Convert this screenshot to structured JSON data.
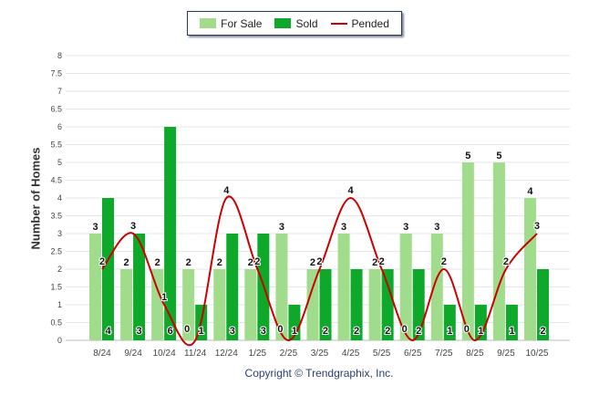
{
  "chart_data": {
    "type": "bar",
    "title": "",
    "xlabel": "",
    "ylabel": "Number of Homes",
    "ylim": [
      0,
      8
    ],
    "ytick_step": 0.5,
    "grid": true,
    "legend_position": "top-center",
    "categories": [
      "8/24",
      "9/24",
      "10/24",
      "11/24",
      "12/24",
      "1/25",
      "2/25",
      "3/25",
      "4/25",
      "5/25",
      "6/25",
      "7/25",
      "8/25",
      "9/25",
      "10/25"
    ],
    "series": [
      {
        "name": "For Sale",
        "type": "bar",
        "color": "#a0dc8c",
        "values": [
          3,
          2,
          2,
          2,
          2,
          2,
          3,
          2,
          3,
          2,
          3,
          3,
          5,
          5,
          4
        ]
      },
      {
        "name": "Sold",
        "type": "bar",
        "color": "#0ea82a",
        "values": [
          4,
          3,
          6,
          1,
          3,
          3,
          1,
          2,
          2,
          2,
          2,
          1,
          1,
          1,
          2
        ]
      },
      {
        "name": "Pended",
        "type": "line",
        "color": "#cc0000",
        "values": [
          2,
          3,
          1,
          0,
          4,
          2,
          0,
          2,
          4,
          2,
          0,
          2,
          0,
          2,
          3
        ]
      }
    ]
  },
  "footer": "Copyright © Trendgraphix, Inc."
}
